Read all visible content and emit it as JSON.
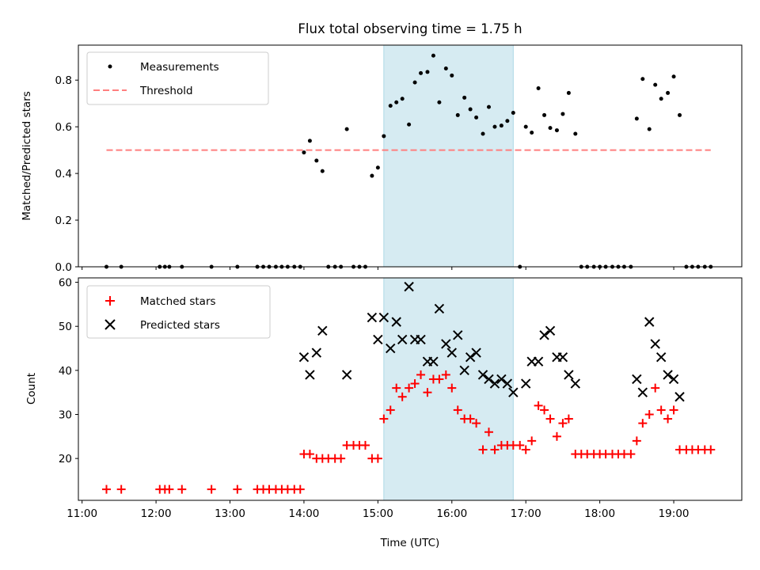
{
  "chart_data": [
    {
      "type": "scatter",
      "title": "Flux total observing time = 1.75 h",
      "xlabel": "",
      "ylabel": "Matched/Predicted stars",
      "ylim": [
        0,
        0.95
      ],
      "yticks": [
        0.0,
        0.2,
        0.4,
        0.6,
        0.8
      ],
      "ytick_labels": [
        "0.0",
        "0.2",
        "0.4",
        "0.6",
        "0.8"
      ],
      "highlight_span": {
        "x0": 15.08,
        "x1": 16.83,
        "color": "#add8e6"
      },
      "legend_position": "top-left",
      "series": [
        {
          "name": "Measurements",
          "kind": "scatter",
          "color": "#000000",
          "points": [
            [
              11.33,
              0
            ],
            [
              11.53,
              0
            ],
            [
              12.05,
              0
            ],
            [
              12.12,
              0
            ],
            [
              12.18,
              0
            ],
            [
              12.35,
              0
            ],
            [
              12.75,
              0
            ],
            [
              13.1,
              0
            ],
            [
              13.37,
              0
            ],
            [
              13.45,
              0
            ],
            [
              13.53,
              0
            ],
            [
              13.62,
              0
            ],
            [
              13.7,
              0
            ],
            [
              13.78,
              0
            ],
            [
              13.87,
              0
            ],
            [
              13.95,
              0
            ],
            [
              14.0,
              0.49
            ],
            [
              14.08,
              0.54
            ],
            [
              14.17,
              0.455
            ],
            [
              14.25,
              0.41
            ],
            [
              14.33,
              0
            ],
            [
              14.42,
              0
            ],
            [
              14.5,
              0
            ],
            [
              14.58,
              0.59
            ],
            [
              14.67,
              0
            ],
            [
              14.75,
              0
            ],
            [
              14.83,
              0
            ],
            [
              14.92,
              0.39
            ],
            [
              15.0,
              0.425
            ],
            [
              15.08,
              0.56
            ],
            [
              15.17,
              0.69
            ],
            [
              15.25,
              0.705
            ],
            [
              15.33,
              0.72
            ],
            [
              15.42,
              0.61
            ],
            [
              15.5,
              0.79
            ],
            [
              15.58,
              0.83
            ],
            [
              15.67,
              0.835
            ],
            [
              15.75,
              0.905
            ],
            [
              15.83,
              0.705
            ],
            [
              15.92,
              0.85
            ],
            [
              16.0,
              0.82
            ],
            [
              16.08,
              0.65
            ],
            [
              16.17,
              0.725
            ],
            [
              16.25,
              0.675
            ],
            [
              16.33,
              0.64
            ],
            [
              16.42,
              0.57
            ],
            [
              16.5,
              0.685
            ],
            [
              16.58,
              0.6
            ],
            [
              16.67,
              0.605
            ],
            [
              16.75,
              0.625
            ],
            [
              16.83,
              0.66
            ],
            [
              16.92,
              0
            ],
            [
              17.0,
              0.6
            ],
            [
              17.08,
              0.575
            ],
            [
              17.17,
              0.765
            ],
            [
              17.25,
              0.65
            ],
            [
              17.33,
              0.595
            ],
            [
              17.42,
              0.585
            ],
            [
              17.5,
              0.655
            ],
            [
              17.58,
              0.745
            ],
            [
              17.67,
              0.57
            ],
            [
              17.75,
              0
            ],
            [
              17.83,
              0
            ],
            [
              17.92,
              0
            ],
            [
              18.0,
              0
            ],
            [
              18.08,
              0
            ],
            [
              18.17,
              0
            ],
            [
              18.25,
              0
            ],
            [
              18.33,
              0
            ],
            [
              18.42,
              0
            ],
            [
              18.5,
              0.635
            ],
            [
              18.58,
              0.805
            ],
            [
              18.67,
              0.59
            ],
            [
              18.75,
              0.78
            ],
            [
              18.83,
              0.72
            ],
            [
              18.92,
              0.745
            ],
            [
              19.0,
              0.815
            ],
            [
              19.08,
              0.65
            ],
            [
              19.17,
              0
            ],
            [
              19.25,
              0
            ],
            [
              19.33,
              0
            ],
            [
              19.42,
              0
            ],
            [
              19.5,
              0
            ]
          ]
        },
        {
          "name": "Threshold",
          "kind": "dashed-line",
          "color": "#ff7f7f",
          "x": [
            11.33,
            19.5
          ],
          "y": [
            0.5,
            0.5
          ]
        }
      ]
    },
    {
      "type": "scatter",
      "title": "",
      "xlabel": "Time (UTC)",
      "ylabel": "Count",
      "ylim": [
        10.5,
        61
      ],
      "yticks": [
        20,
        30,
        40,
        50,
        60
      ],
      "ytick_labels": [
        "20",
        "30",
        "40",
        "50",
        "60"
      ],
      "xlim": [
        10.95,
        19.92
      ],
      "xticks": [
        11,
        12,
        13,
        14,
        15,
        16,
        17,
        18,
        19
      ],
      "xtick_labels": [
        "11:00",
        "12:00",
        "13:00",
        "14:00",
        "15:00",
        "16:00",
        "17:00",
        "18:00",
        "19:00"
      ],
      "highlight_span": {
        "x0": 15.08,
        "x1": 16.83,
        "color": "#add8e6"
      },
      "legend_position": "top-left",
      "series": [
        {
          "name": "Matched stars",
          "kind": "plus",
          "color": "#ff0000",
          "points": [
            [
              11.33,
              13
            ],
            [
              11.53,
              13
            ],
            [
              12.05,
              13
            ],
            [
              12.12,
              13
            ],
            [
              12.18,
              13
            ],
            [
              12.35,
              13
            ],
            [
              12.75,
              13
            ],
            [
              13.1,
              13
            ],
            [
              13.37,
              13
            ],
            [
              13.45,
              13
            ],
            [
              13.53,
              13
            ],
            [
              13.62,
              13
            ],
            [
              13.7,
              13
            ],
            [
              13.78,
              13
            ],
            [
              13.87,
              13
            ],
            [
              13.95,
              13
            ],
            [
              14.0,
              21
            ],
            [
              14.08,
              21
            ],
            [
              14.17,
              20
            ],
            [
              14.25,
              20
            ],
            [
              14.33,
              20
            ],
            [
              14.42,
              20
            ],
            [
              14.5,
              20
            ],
            [
              14.58,
              23
            ],
            [
              14.67,
              23
            ],
            [
              14.75,
              23
            ],
            [
              14.83,
              23
            ],
            [
              14.92,
              20
            ],
            [
              15.0,
              20
            ],
            [
              15.08,
              29
            ],
            [
              15.17,
              31
            ],
            [
              15.25,
              36
            ],
            [
              15.33,
              34
            ],
            [
              15.42,
              36
            ],
            [
              15.5,
              37
            ],
            [
              15.58,
              39
            ],
            [
              15.67,
              35
            ],
            [
              15.75,
              38
            ],
            [
              15.83,
              38
            ],
            [
              15.92,
              39
            ],
            [
              16.0,
              36
            ],
            [
              16.08,
              31
            ],
            [
              16.17,
              29
            ],
            [
              16.25,
              29
            ],
            [
              16.33,
              28
            ],
            [
              16.42,
              22
            ],
            [
              16.5,
              26
            ],
            [
              16.58,
              22
            ],
            [
              16.67,
              23
            ],
            [
              16.75,
              23
            ],
            [
              16.83,
              23
            ],
            [
              16.92,
              23
            ],
            [
              17.0,
              22
            ],
            [
              17.08,
              24
            ],
            [
              17.17,
              32
            ],
            [
              17.25,
              31
            ],
            [
              17.33,
              29
            ],
            [
              17.42,
              25
            ],
            [
              17.5,
              28
            ],
            [
              17.58,
              29
            ],
            [
              17.67,
              21
            ],
            [
              17.75,
              21
            ],
            [
              17.83,
              21
            ],
            [
              17.92,
              21
            ],
            [
              18.0,
              21
            ],
            [
              18.08,
              21
            ],
            [
              18.17,
              21
            ],
            [
              18.25,
              21
            ],
            [
              18.33,
              21
            ],
            [
              18.42,
              21
            ],
            [
              18.5,
              24
            ],
            [
              18.58,
              28
            ],
            [
              18.67,
              30
            ],
            [
              18.75,
              36
            ],
            [
              18.83,
              31
            ],
            [
              18.92,
              29
            ],
            [
              19.0,
              31
            ],
            [
              19.08,
              22
            ],
            [
              19.17,
              22
            ],
            [
              19.25,
              22
            ],
            [
              19.33,
              22
            ],
            [
              19.42,
              22
            ],
            [
              19.5,
              22
            ]
          ]
        },
        {
          "name": "Predicted stars",
          "kind": "x",
          "color": "#000000",
          "points": [
            [
              14.0,
              43
            ],
            [
              14.08,
              39
            ],
            [
              14.17,
              44
            ],
            [
              14.25,
              49
            ],
            [
              14.58,
              39
            ],
            [
              14.92,
              52
            ],
            [
              15.0,
              47
            ],
            [
              15.08,
              52
            ],
            [
              15.17,
              45
            ],
            [
              15.25,
              51
            ],
            [
              15.33,
              47
            ],
            [
              15.42,
              59
            ],
            [
              15.5,
              47
            ],
            [
              15.58,
              47
            ],
            [
              15.67,
              42
            ],
            [
              15.75,
              42
            ],
            [
              15.83,
              54
            ],
            [
              15.92,
              46
            ],
            [
              16.0,
              44
            ],
            [
              16.08,
              48
            ],
            [
              16.17,
              40
            ],
            [
              16.25,
              43
            ],
            [
              16.33,
              44
            ],
            [
              16.42,
              39
            ],
            [
              16.5,
              38
            ],
            [
              16.58,
              37
            ],
            [
              16.67,
              38
            ],
            [
              16.75,
              37
            ],
            [
              16.83,
              35
            ],
            [
              17.0,
              37
            ],
            [
              17.08,
              42
            ],
            [
              17.17,
              42
            ],
            [
              17.25,
              48
            ],
            [
              17.33,
              49
            ],
            [
              17.42,
              43
            ],
            [
              17.5,
              43
            ],
            [
              17.58,
              39
            ],
            [
              17.67,
              37
            ],
            [
              18.5,
              38
            ],
            [
              18.58,
              35
            ],
            [
              18.67,
              51
            ],
            [
              18.75,
              46
            ],
            [
              18.83,
              43
            ],
            [
              18.92,
              39
            ],
            [
              19.0,
              38
            ],
            [
              19.08,
              34
            ]
          ]
        }
      ]
    }
  ]
}
